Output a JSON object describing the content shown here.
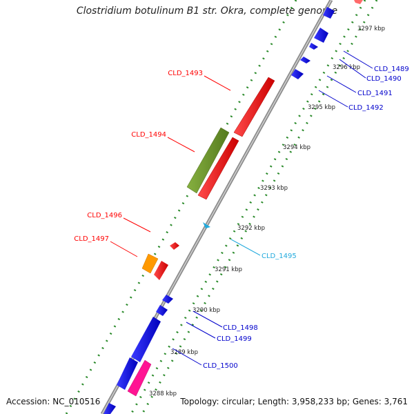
{
  "title": "Clostridium botulinum B1 str. Okra, complete genome",
  "footer": {
    "accession": "Accession: NC_010516",
    "summary": "Topology: circular; Length: 3,958,233 bp; Genes: 3,761"
  },
  "colors": {
    "backbone": "#999999",
    "dots": "#2a8a2a",
    "cds_forward": "#ff0000",
    "cds_reverse": "#0000ee",
    "olive": "#6f9a2a",
    "orange": "#ff9900",
    "pink": "#ff1493",
    "rna": "#22aadd"
  },
  "ticks": [
    "3297 kbp",
    "3296 kbp",
    "3295 kbp",
    "3294 kbp",
    "3293 kbp",
    "3292 kbp",
    "3291 kbp",
    "3290 kbp",
    "3289 kbp",
    "3288 kbp"
  ],
  "labels": {
    "left": [
      "CLD_1493",
      "CLD_1494",
      "CLD_1496",
      "CLD_1497"
    ],
    "right": [
      "CLD_1489",
      "CLD_1490",
      "CLD_1491",
      "CLD_1492",
      "CLD_1495",
      "CLD_1498",
      "CLD_1499",
      "CLD_1500"
    ]
  }
}
